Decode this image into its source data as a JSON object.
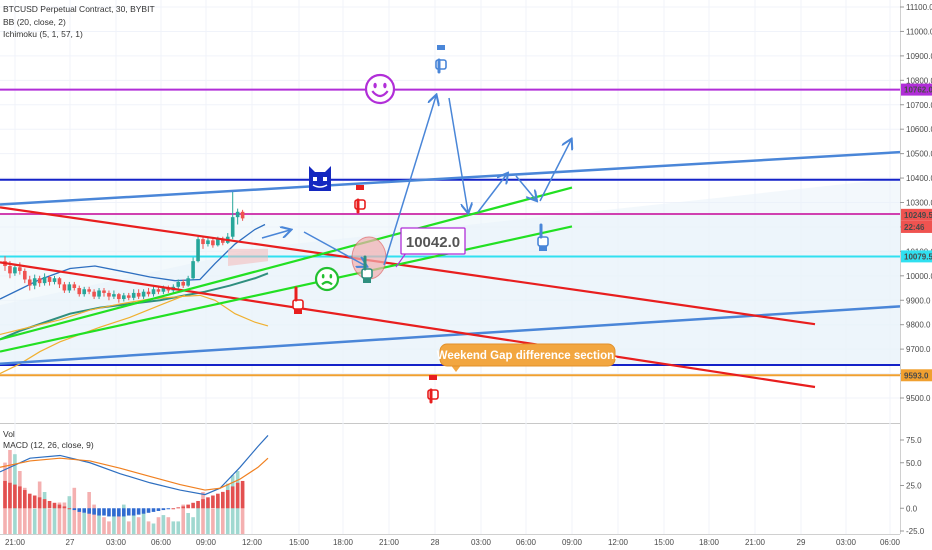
{
  "header": {
    "symbol_line": "BTCUSD Perpetual Contract, 30, BYBIT",
    "indicator_bb": "BB (20, close, 2)",
    "indicator_ichimoku": "Ichimoku (5, 1, 57, 1)",
    "vol_label": "Vol",
    "macd_label": "MACD (12, 26, close, 9)"
  },
  "colors": {
    "up": "#26a69a",
    "down": "#ef5350",
    "red_line": "#e81e1e",
    "green_line": "#22e022",
    "blue_trend": "#4a86d8",
    "navy": "#1422c8",
    "purple": "#b12ed8",
    "cyan": "#30e0f0",
    "magenta": "#d040b0",
    "orange": "#f0a030",
    "arrow": "#4a86d8"
  },
  "chart_data": {
    "type": "candlestick",
    "price_axis": {
      "ylim": [
        9420,
        11100
      ],
      "ticks": [
        "11100.0",
        "11000.0",
        "10900.0",
        "10800.0",
        "10700.0",
        "10600.0",
        "10500.0",
        "10400.0",
        "10300.0",
        "10200.0",
        "10100.0",
        "10000.0",
        "9900.0",
        "9800.0",
        "9700.0",
        "9600.0",
        "9500.0"
      ]
    },
    "time_axis": {
      "ticks": [
        "21:00",
        "27",
        "03:00",
        "06:00",
        "09:00",
        "12:00",
        "15:00",
        "18:00",
        "21:00",
        "28",
        "03:00",
        "06:00",
        "09:00",
        "12:00",
        "15:00",
        "18:00",
        "21:00",
        "29",
        "03:00",
        "06:00"
      ]
    },
    "price_labels": [
      {
        "text": "10762.0",
        "price": 10762,
        "color": "#b12ed8"
      },
      {
        "text": "10249.5",
        "price": 10249.5,
        "color": "#ef5350"
      },
      {
        "text": "22:46",
        "price": 10200,
        "color": "#ef5350"
      },
      {
        "text": "10079.5",
        "price": 10079.5,
        "color": "#30e0f0"
      },
      {
        "text": "9593.0",
        "price": 9593,
        "color": "#f0a030"
      }
    ],
    "horizontal_levels": [
      {
        "name": "purple-level",
        "price": 10762,
        "color": "#b12ed8"
      },
      {
        "name": "navy-upper-level",
        "price": 10393,
        "color": "#1422c8"
      },
      {
        "name": "magenta-level",
        "price": 10253,
        "color": "#d040b0"
      },
      {
        "name": "cyan-level",
        "price": 10079,
        "color": "#30e0f0"
      },
      {
        "name": "navy-lower-level",
        "price": 9635,
        "color": "#1422c8"
      },
      {
        "name": "orange-level",
        "price": 9593,
        "color": "#f0a030"
      }
    ],
    "candles": [
      [
        10060,
        10040,
        10080,
        10020
      ],
      [
        10040,
        10010,
        10060,
        9990
      ],
      [
        10010,
        10035,
        10050,
        10000
      ],
      [
        10035,
        10020,
        10055,
        10005
      ],
      [
        10020,
        9985,
        10030,
        9970
      ],
      [
        9985,
        9960,
        10000,
        9940
      ],
      [
        9960,
        9990,
        10005,
        9945
      ],
      [
        9990,
        9970,
        10000,
        9955
      ],
      [
        9970,
        9995,
        10010,
        9960
      ],
      [
        9995,
        9975,
        10000,
        9960
      ],
      [
        9975,
        9990,
        10000,
        9965
      ],
      [
        9990,
        9965,
        9995,
        9950
      ],
      [
        9965,
        9940,
        9975,
        9930
      ],
      [
        9940,
        9965,
        9975,
        9930
      ],
      [
        9965,
        9950,
        9975,
        9940
      ],
      [
        9950,
        9925,
        9960,
        9915
      ],
      [
        9925,
        9945,
        9955,
        9915
      ],
      [
        9945,
        9935,
        9955,
        9925
      ],
      [
        9935,
        9915,
        9945,
        9905
      ],
      [
        9915,
        9940,
        9950,
        9905
      ],
      [
        9940,
        9930,
        9950,
        9915
      ],
      [
        9930,
        9915,
        9940,
        9900
      ],
      [
        9915,
        9925,
        9940,
        9905
      ],
      [
        9925,
        9905,
        9930,
        9890
      ],
      [
        9905,
        9920,
        9930,
        9895
      ],
      [
        9920,
        9910,
        9930,
        9900
      ],
      [
        9910,
        9930,
        9945,
        9900
      ],
      [
        9930,
        9915,
        9945,
        9905
      ],
      [
        9915,
        9935,
        9945,
        9905
      ],
      [
        9935,
        9925,
        9950,
        9915
      ],
      [
        9925,
        9945,
        9955,
        9915
      ],
      [
        9945,
        9935,
        9955,
        9925
      ],
      [
        9935,
        9950,
        9960,
        9925
      ],
      [
        9950,
        9940,
        9960,
        9930
      ],
      [
        9940,
        9955,
        9965,
        9930
      ],
      [
        9955,
        9975,
        9985,
        9945
      ],
      [
        9975,
        9960,
        9985,
        9950
      ],
      [
        9960,
        9990,
        10000,
        9955
      ],
      [
        9990,
        10060,
        10075,
        9985
      ],
      [
        10060,
        10150,
        10160,
        10055
      ],
      [
        10150,
        10130,
        10165,
        10110
      ],
      [
        10130,
        10145,
        10160,
        10120
      ],
      [
        10145,
        10125,
        10155,
        10115
      ],
      [
        10125,
        10150,
        10160,
        10120
      ],
      [
        10150,
        10135,
        10160,
        10125
      ],
      [
        10135,
        10160,
        10175,
        10130
      ],
      [
        10160,
        10240,
        10350,
        10150
      ],
      [
        10240,
        10262,
        10275,
        10210
      ],
      [
        10262,
        10235,
        10270,
        10225
      ]
    ],
    "volume": [
      34,
      40,
      38,
      30,
      22,
      15,
      12,
      25,
      20,
      12,
      14,
      15,
      15,
      18,
      22,
      12,
      10,
      20,
      14,
      11,
      8,
      6,
      12,
      10,
      14,
      6,
      10,
      8,
      12,
      6,
      5,
      8,
      9,
      8,
      6,
      6,
      14,
      10,
      8,
      15,
      20,
      15,
      12,
      18,
      20,
      24,
      28,
      30,
      24
    ],
    "macd_axis": {
      "ylim": [
        -28,
        83
      ],
      "ticks": [
        "75.0",
        "50.0",
        "25.0",
        "0.0",
        "-25.0"
      ]
    },
    "drawings": {
      "target_label": "10042.0",
      "weekend_label": "Weekend Gap difference section."
    }
  }
}
